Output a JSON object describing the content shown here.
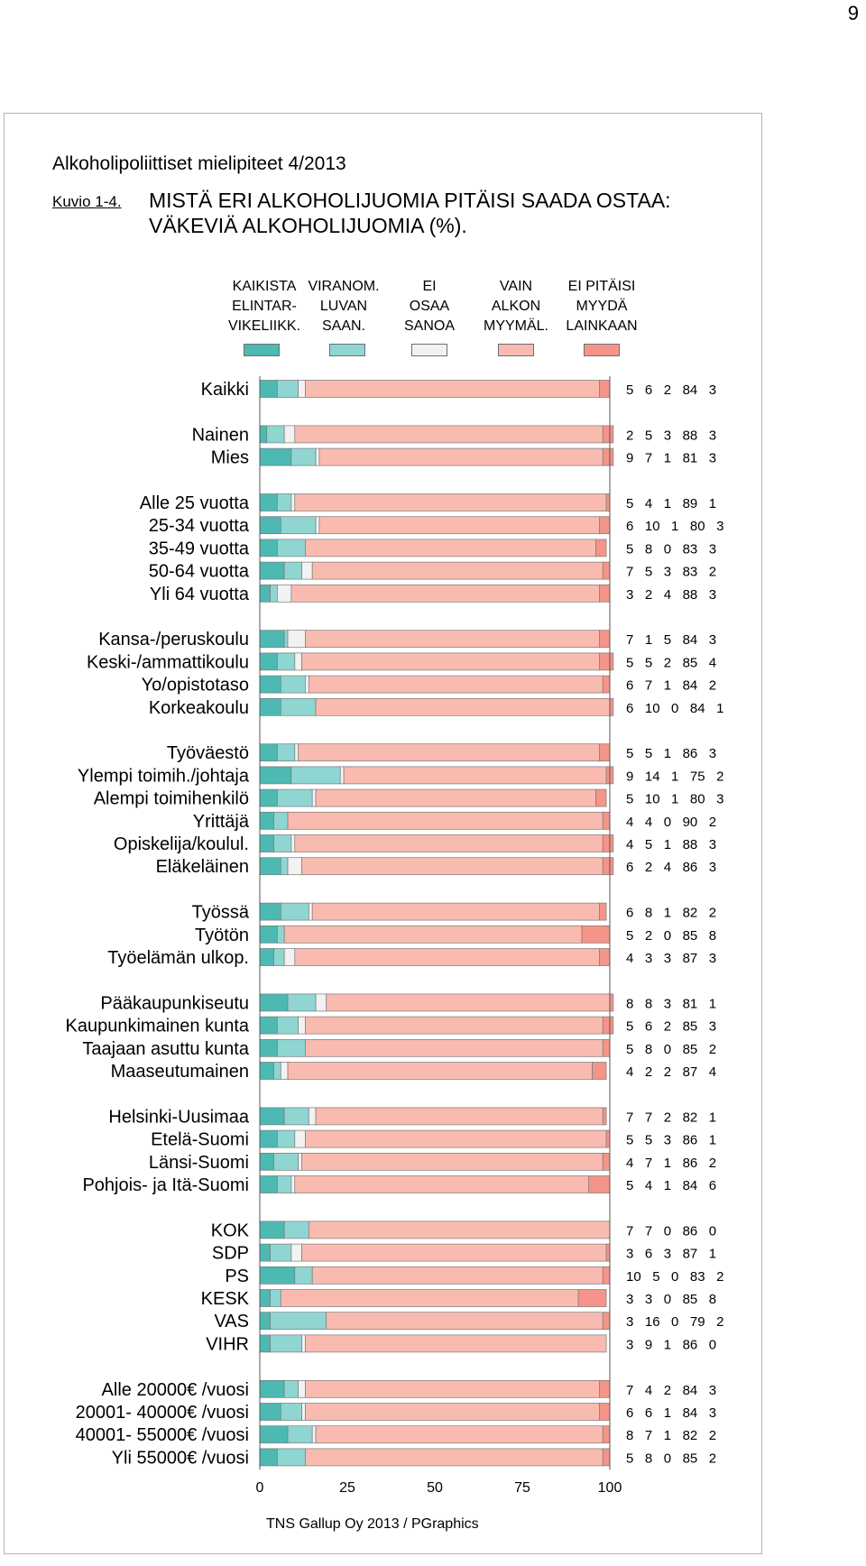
{
  "page_number": "9",
  "report_title": "Alkoholipoliittiset mielipiteet 4/2013",
  "figure_number": "Kuvio 1-4.",
  "figure_title_line1": "MISTÄ ERI ALKOHOLIJUOMIA PITÄISI SAADA OSTAA:",
  "figure_title_line2": "VÄKEVIÄ ALKOHOLIJUOMIA (%).",
  "source_note": "TNS Gallup Oy 2013 / PGraphics",
  "colors": {
    "kaikista": "#4cb9b2",
    "viranom": "#8fd6d2",
    "ei_osaa": "#f2f2f2",
    "vain_alkon": "#f9bbb0",
    "ei_pitaisi": "#f59488"
  },
  "legend": [
    {
      "line1": "KAIKISTA",
      "line2": "ELINTAR-",
      "line3": "VIKELIIKK."
    },
    {
      "line1": "VIRANOM.",
      "line2": "LUVAN",
      "line3": "SAAN."
    },
    {
      "line1": "EI",
      "line2": "OSAA",
      "line3": "SANOA"
    },
    {
      "line1": "VAIN",
      "line2": "ALKON",
      "line3": "MYYMÄL."
    },
    {
      "line1": "EI PITÄISI",
      "line2": "MYYDÄ",
      "line3": "LAINKAAN"
    }
  ],
  "chart_data": {
    "type": "bar",
    "orientation": "horizontal",
    "stacked": true,
    "title": "MISTÄ ERI ALKOHOLIJUOMIA PITÄISI SAADA OSTAA: VÄKEVIÄ ALKOHOLIJUOMIA (%).",
    "series_names": [
      "KAIKISTA ELINTARVIKELIIKK.",
      "VIRANOM. LUVAN SAAN.",
      "EI OSAA SANOA",
      "VAIN ALKON MYYMÄL.",
      "EI PITÄISI MYYDÄ LAINKAAN"
    ],
    "xlim": [
      0,
      100
    ],
    "xticks": [
      0,
      25,
      50,
      75,
      100
    ],
    "groups": [
      {
        "rows": [
          {
            "label": "Kaikki",
            "values": [
              5,
              6,
              2,
              84,
              3
            ]
          }
        ]
      },
      {
        "rows": [
          {
            "label": "Nainen",
            "values": [
              2,
              5,
              3,
              88,
              3
            ]
          },
          {
            "label": "Mies",
            "values": [
              9,
              7,
              1,
              81,
              3
            ]
          }
        ]
      },
      {
        "rows": [
          {
            "label": "Alle 25 vuotta",
            "values": [
              5,
              4,
              1,
              89,
              1
            ]
          },
          {
            "label": "25-34 vuotta",
            "values": [
              6,
              10,
              1,
              80,
              3
            ]
          },
          {
            "label": "35-49 vuotta",
            "values": [
              5,
              8,
              0,
              83,
              3
            ]
          },
          {
            "label": "50-64 vuotta",
            "values": [
              7,
              5,
              3,
              83,
              2
            ]
          },
          {
            "label": "Yli 64 vuotta",
            "values": [
              3,
              2,
              4,
              88,
              3
            ]
          }
        ]
      },
      {
        "rows": [
          {
            "label": "Kansa-/peruskoulu",
            "values": [
              7,
              1,
              5,
              84,
              3
            ]
          },
          {
            "label": "Keski-/ammattikoulu",
            "values": [
              5,
              5,
              2,
              85,
              4
            ]
          },
          {
            "label": "Yo/opistotaso",
            "values": [
              6,
              7,
              1,
              84,
              2
            ]
          },
          {
            "label": "Korkeakoulu",
            "values": [
              6,
              10,
              0,
              84,
              1
            ]
          }
        ]
      },
      {
        "rows": [
          {
            "label": "Työväestö",
            "values": [
              5,
              5,
              1,
              86,
              3
            ]
          },
          {
            "label": "Ylempi toimih./johtaja",
            "values": [
              9,
              14,
              1,
              75,
              2
            ]
          },
          {
            "label": "Alempi toimihenkilö",
            "values": [
              5,
              10,
              1,
              80,
              3
            ]
          },
          {
            "label": "Yrittäjä",
            "values": [
              4,
              4,
              0,
              90,
              2
            ]
          },
          {
            "label": "Opiskelija/koulul.",
            "values": [
              4,
              5,
              1,
              88,
              3
            ]
          },
          {
            "label": "Eläkeläinen",
            "values": [
              6,
              2,
              4,
              86,
              3
            ]
          }
        ]
      },
      {
        "rows": [
          {
            "label": "Työssä",
            "values": [
              6,
              8,
              1,
              82,
              2
            ]
          },
          {
            "label": "Työtön",
            "values": [
              5,
              2,
              0,
              85,
              8
            ]
          },
          {
            "label": "Työelämän ulkop.",
            "values": [
              4,
              3,
              3,
              87,
              3
            ]
          }
        ]
      },
      {
        "rows": [
          {
            "label": "Pääkaupunkiseutu",
            "values": [
              8,
              8,
              3,
              81,
              1
            ]
          },
          {
            "label": "Kaupunkimainen kunta",
            "values": [
              5,
              6,
              2,
              85,
              3
            ]
          },
          {
            "label": "Taajaan asuttu kunta",
            "values": [
              5,
              8,
              0,
              85,
              2
            ]
          },
          {
            "label": "Maaseutumainen",
            "values": [
              4,
              2,
              2,
              87,
              4
            ]
          }
        ]
      },
      {
        "rows": [
          {
            "label": "Helsinki-Uusimaa",
            "values": [
              7,
              7,
              2,
              82,
              1
            ]
          },
          {
            "label": "Etelä-Suomi",
            "values": [
              5,
              5,
              3,
              86,
              1
            ]
          },
          {
            "label": "Länsi-Suomi",
            "values": [
              4,
              7,
              1,
              86,
              2
            ]
          },
          {
            "label": "Pohjois- ja Itä-Suomi",
            "values": [
              5,
              4,
              1,
              84,
              6
            ]
          }
        ]
      },
      {
        "rows": [
          {
            "label": "KOK",
            "values": [
              7,
              7,
              0,
              86,
              0
            ]
          },
          {
            "label": "SDP",
            "values": [
              3,
              6,
              3,
              87,
              1
            ]
          },
          {
            "label": "PS",
            "values": [
              10,
              5,
              0,
              83,
              2
            ]
          },
          {
            "label": "KESK",
            "values": [
              3,
              3,
              0,
              85,
              8
            ]
          },
          {
            "label": "VAS",
            "values": [
              3,
              16,
              0,
              79,
              2
            ]
          },
          {
            "label": "VIHR",
            "values": [
              3,
              9,
              1,
              86,
              0
            ]
          }
        ]
      },
      {
        "rows": [
          {
            "label": "Alle 20000€ /vuosi",
            "values": [
              7,
              4,
              2,
              84,
              3
            ]
          },
          {
            "label": "20001- 40000€ /vuosi",
            "values": [
              6,
              6,
              1,
              84,
              3
            ]
          },
          {
            "label": "40001- 55000€ /vuosi",
            "values": [
              8,
              7,
              1,
              82,
              2
            ]
          },
          {
            "label": "Yli 55000€ /vuosi",
            "values": [
              5,
              8,
              0,
              85,
              2
            ]
          }
        ]
      }
    ]
  }
}
